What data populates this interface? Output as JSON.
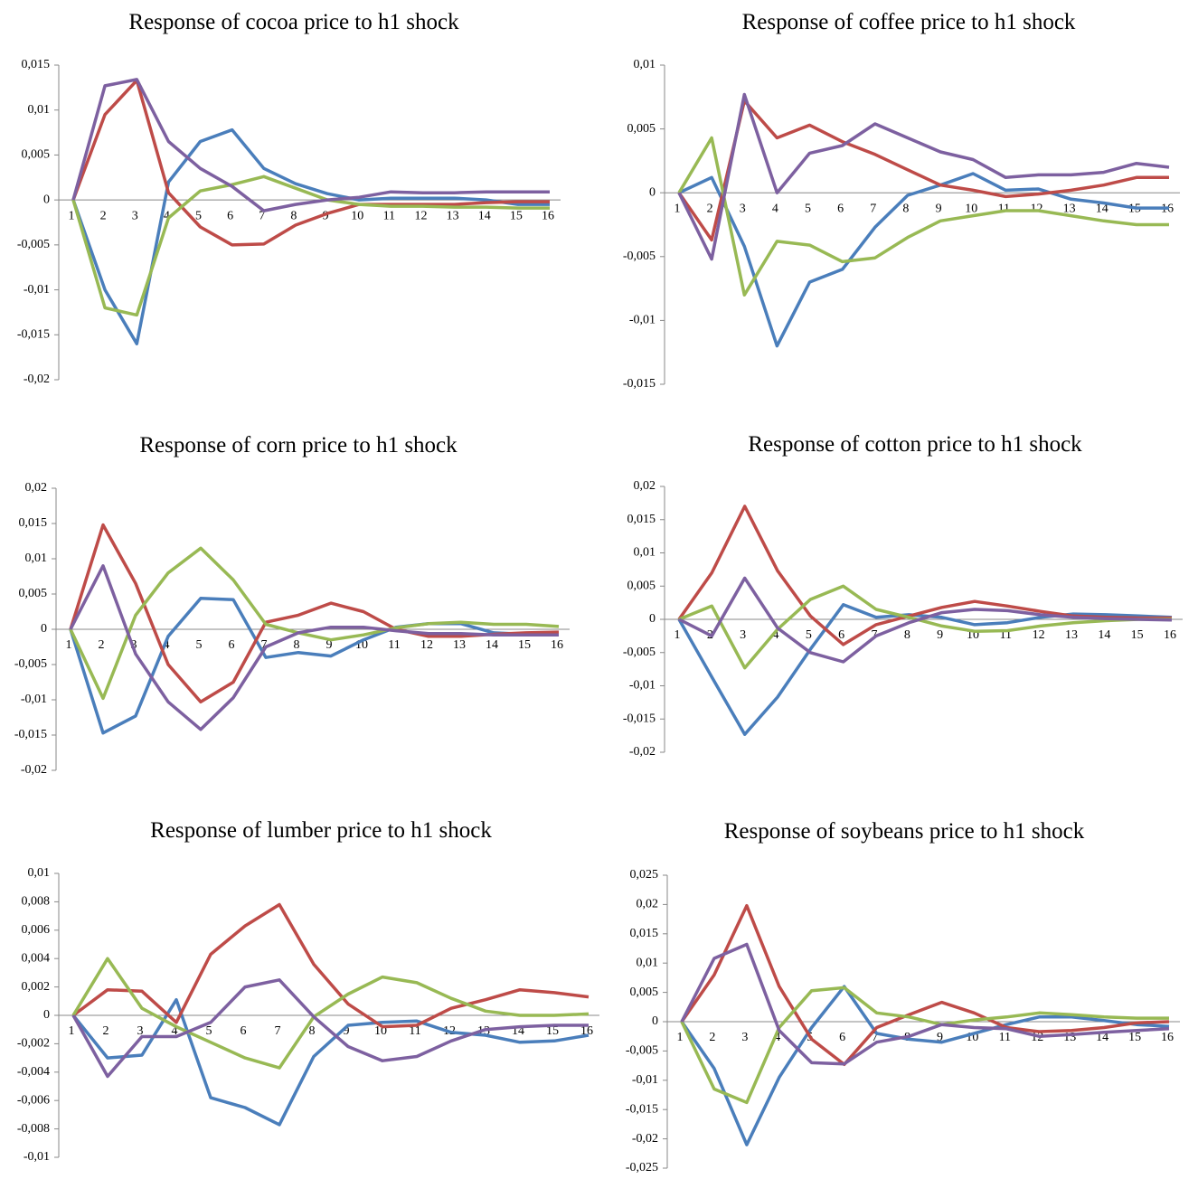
{
  "chart_data": [
    {
      "type": "line",
      "title": "Response of cocoa price to h1 shock",
      "categories": [
        "1",
        "2",
        "3",
        "4",
        "5",
        "6",
        "7",
        "8",
        "9",
        "10",
        "11",
        "12",
        "13",
        "14",
        "15",
        "16"
      ],
      "ylim": [
        -0.02,
        0.015
      ],
      "yticks": [
        {
          "value": 0.015,
          "label": "0,015"
        },
        {
          "value": 0.01,
          "label": "0,01"
        },
        {
          "value": 0.005,
          "label": "0,005"
        },
        0,
        {
          "value": -0.005,
          "label": "-0,005"
        },
        {
          "value": -0.01,
          "label": "-0,01"
        },
        {
          "value": -0.015,
          "label": "-0,015"
        },
        {
          "value": -0.02,
          "label": "-0,02"
        }
      ],
      "series": [
        {
          "color": "#4a7ebb",
          "values": [
            0,
            -0.01,
            -0.016,
            0.002,
            0.0065,
            0.0078,
            0.0035,
            0.0018,
            0.0007,
            0,
            0.0002,
            0.0002,
            0.0002,
            0,
            -0.0005,
            -0.0005
          ]
        },
        {
          "color": "#be4b48",
          "values": [
            0,
            0.0095,
            0.0133,
            0.0008,
            -0.003,
            -0.005,
            -0.0049,
            -0.0028,
            -0.0015,
            -0.0005,
            -0.0005,
            -0.0005,
            -0.0005,
            -0.0003,
            -0.0002,
            -0.0002
          ]
        },
        {
          "color": "#98b954",
          "values": [
            0,
            -0.012,
            -0.0128,
            -0.002,
            0.001,
            0.0017,
            0.0026,
            0.0013,
            0,
            -0.0005,
            -0.0007,
            -0.0007,
            -0.0008,
            -0.0008,
            -0.0009,
            -0.0009
          ]
        },
        {
          "color": "#7d60a0",
          "values": [
            0,
            0.0127,
            0.0134,
            0.0065,
            0.0035,
            0.0015,
            -0.0012,
            -0.0005,
            0,
            0.0003,
            0.0009,
            0.0008,
            0.0008,
            0.0009,
            0.0009,
            0.0009
          ]
        }
      ]
    },
    {
      "type": "line",
      "title": "Response of coffee price to h1 shock",
      "categories": [
        "1",
        "2",
        "3",
        "4",
        "5",
        "6",
        "7",
        "8",
        "9",
        "10",
        "11",
        "12",
        "13",
        "14",
        "15",
        "16"
      ],
      "ylim": [
        -0.015,
        0.01
      ],
      "yticks": [
        {
          "value": 0.01,
          "label": "0,01"
        },
        {
          "value": 0.005,
          "label": "0,005"
        },
        0,
        {
          "value": -0.005,
          "label": "-0,005"
        },
        {
          "value": -0.01,
          "label": "-0,01"
        },
        {
          "value": -0.015,
          "label": "-0,015"
        }
      ],
      "series": [
        {
          "color": "#4a7ebb",
          "values": [
            0,
            0.0012,
            -0.0042,
            -0.012,
            -0.007,
            -0.006,
            -0.0027,
            -0.0002,
            0.0006,
            0.0015,
            0.0002,
            0.0003,
            -0.0005,
            -0.0008,
            -0.0012,
            -0.0012
          ]
        },
        {
          "color": "#be4b48",
          "values": [
            0,
            -0.0037,
            0.0072,
            0.0043,
            0.0053,
            0.004,
            0.003,
            0.0018,
            0.0006,
            0.0002,
            -0.0003,
            -0.0001,
            0.0002,
            0.0006,
            0.0012,
            0.0012
          ]
        },
        {
          "color": "#98b954",
          "values": [
            0,
            0.0043,
            -0.008,
            -0.0038,
            -0.0041,
            -0.0054,
            -0.0051,
            -0.0035,
            -0.0022,
            -0.0018,
            -0.0014,
            -0.0014,
            -0.0018,
            -0.0022,
            -0.0025,
            -0.0025
          ]
        },
        {
          "color": "#7d60a0",
          "values": [
            0,
            -0.0052,
            0.0077,
            0,
            0.0031,
            0.0037,
            0.0054,
            0.0043,
            0.0032,
            0.0026,
            0.0012,
            0.0014,
            0.0014,
            0.0016,
            0.0023,
            0.002
          ]
        }
      ]
    },
    {
      "type": "line",
      "title": "Response of corn price to h1 shock",
      "categories": [
        "1",
        "2",
        "3",
        "4",
        "5",
        "6",
        "7",
        "8",
        "9",
        "10",
        "11",
        "12",
        "13",
        "14",
        "15",
        "16"
      ],
      "ylim": [
        -0.02,
        0.02
      ],
      "yticks": [
        {
          "value": 0.02,
          "label": "0,02"
        },
        {
          "value": 0.015,
          "label": "0,015"
        },
        {
          "value": 0.01,
          "label": "0,01"
        },
        {
          "value": 0.005,
          "label": "0,005"
        },
        0,
        {
          "value": -0.005,
          "label": "-0,005"
        },
        {
          "value": -0.01,
          "label": "-0,01"
        },
        {
          "value": -0.015,
          "label": "-0,015"
        },
        {
          "value": -0.02,
          "label": "-0,02"
        }
      ],
      "series": [
        {
          "color": "#4a7ebb",
          "values": [
            0,
            -0.0147,
            -0.0123,
            -0.001,
            0.0044,
            0.0042,
            -0.004,
            -0.0033,
            -0.0038,
            -0.0015,
            0.0003,
            0.0008,
            0.0008,
            -0.0005,
            -0.0007,
            -0.0007
          ]
        },
        {
          "color": "#be4b48",
          "values": [
            0,
            0.0148,
            0.0065,
            -0.005,
            -0.0103,
            -0.0075,
            0.001,
            0.002,
            0.0037,
            0.0025,
            0,
            -0.001,
            -0.001,
            -0.0007,
            -0.0005,
            -0.0004
          ]
        },
        {
          "color": "#98b954",
          "values": [
            0,
            -0.0098,
            0.002,
            0.008,
            0.0115,
            0.007,
            0.0007,
            -0.0005,
            -0.0015,
            -0.0008,
            0.0002,
            0.0008,
            0.001,
            0.0007,
            0.0007,
            0.0004
          ]
        },
        {
          "color": "#7d60a0",
          "values": [
            0,
            0.009,
            -0.0035,
            -0.0103,
            -0.0142,
            -0.0097,
            -0.0025,
            -0.0005,
            0.0003,
            0.0003,
            -0.0002,
            -0.0006,
            -0.0006,
            -0.0008,
            -0.0008,
            -0.0008
          ]
        }
      ]
    },
    {
      "type": "line",
      "title": "Response of cotton price to h1 shock",
      "categories": [
        "1",
        "2",
        "3",
        "4",
        "5",
        "6",
        "7",
        "8",
        "9",
        "10",
        "11",
        "12",
        "13",
        "14",
        "15",
        "16"
      ],
      "ylim": [
        -0.02,
        0.02
      ],
      "yticks": [
        {
          "value": 0.02,
          "label": "0,02"
        },
        {
          "value": 0.015,
          "label": "0,015"
        },
        {
          "value": 0.01,
          "label": "0,01"
        },
        {
          "value": 0.005,
          "label": "0,005"
        },
        0,
        {
          "value": -0.005,
          "label": "-0,005"
        },
        {
          "value": -0.01,
          "label": "-0,01"
        },
        {
          "value": -0.015,
          "label": "-0,015"
        },
        {
          "value": -0.02,
          "label": "-0,02"
        }
      ],
      "series": [
        {
          "color": "#4a7ebb",
          "values": [
            0,
            -0.0087,
            -0.0173,
            -0.0117,
            -0.0045,
            0.0022,
            0.0003,
            0.0007,
            0.0003,
            -0.0008,
            -0.0005,
            0.0003,
            0.0008,
            0.0007,
            0.0005,
            0.0003
          ]
        },
        {
          "color": "#be4b48",
          "values": [
            0,
            0.007,
            0.017,
            0.0073,
            0.0005,
            -0.0038,
            -0.0008,
            0.0005,
            0.0018,
            0.0027,
            0.002,
            0.0012,
            0.0005,
            0.0003,
            0.0002,
            0.0002
          ]
        },
        {
          "color": "#98b954",
          "values": [
            0,
            0.002,
            -0.0073,
            -0.0015,
            0.003,
            0.005,
            0.0015,
            0.0003,
            -0.001,
            -0.0018,
            -0.0017,
            -0.001,
            -0.0005,
            -0.0002,
            0,
            0
          ]
        },
        {
          "color": "#7d60a0",
          "values": [
            0,
            -0.0025,
            0.0062,
            -0.0013,
            -0.005,
            -0.0064,
            -0.0025,
            -0.0005,
            0.001,
            0.0015,
            0.0013,
            0.0007,
            0.0003,
            0.0001,
            0,
            -0.0001
          ]
        }
      ]
    },
    {
      "type": "line",
      "title": "Response of lumber price to h1 shock",
      "categories": [
        "1",
        "2",
        "3",
        "4",
        "5",
        "6",
        "7",
        "8",
        "9",
        "10",
        "11",
        "12",
        "13",
        "14",
        "15",
        "16"
      ],
      "ylim": [
        -0.01,
        0.01
      ],
      "yticks": [
        {
          "value": 0.01,
          "label": "0,01"
        },
        {
          "value": 0.008,
          "label": "0,008"
        },
        {
          "value": 0.006,
          "label": "0,006"
        },
        {
          "value": 0.004,
          "label": "0,004"
        },
        {
          "value": 0.002,
          "label": "0,002"
        },
        0,
        {
          "value": -0.002,
          "label": "-0,002"
        },
        {
          "value": -0.004,
          "label": "-0,004"
        },
        {
          "value": -0.006,
          "label": "-0,006"
        },
        {
          "value": -0.008,
          "label": "-0,008"
        },
        {
          "value": -0.01,
          "label": "-0,01"
        }
      ],
      "series": [
        {
          "color": "#4a7ebb",
          "values": [
            0,
            -0.003,
            -0.0028,
            0.0011,
            -0.0058,
            -0.0065,
            -0.0077,
            -0.0029,
            -0.0007,
            -0.0005,
            -0.0004,
            -0.0012,
            -0.0014,
            -0.0019,
            -0.0018,
            -0.0014
          ]
        },
        {
          "color": "#be4b48",
          "values": [
            0,
            0.0018,
            0.0017,
            -0.0005,
            0.0043,
            0.0063,
            0.0078,
            0.0036,
            0.0008,
            -0.0008,
            -0.0007,
            0.0005,
            0.0011,
            0.0018,
            0.0016,
            0.0013
          ]
        },
        {
          "color": "#98b954",
          "values": [
            0,
            0.004,
            0.0005,
            -0.0008,
            -0.0019,
            -0.003,
            -0.0037,
            -0.0001,
            0.0015,
            0.0027,
            0.0023,
            0.0012,
            0.0003,
            0,
            0,
            0.0001
          ]
        },
        {
          "color": "#7d60a0",
          "values": [
            0,
            -0.0043,
            -0.0015,
            -0.0015,
            -0.0005,
            0.002,
            0.0025,
            -0.0001,
            -0.0022,
            -0.0032,
            -0.0029,
            -0.0018,
            -0.001,
            -0.0008,
            -0.0007,
            -0.0007
          ]
        }
      ]
    },
    {
      "type": "line",
      "title": "Response of soybeans price to h1 shock",
      "categories": [
        "1",
        "2",
        "3",
        "4",
        "5",
        "6",
        "7",
        "8",
        "9",
        "10",
        "11",
        "12",
        "13",
        "14",
        "15",
        "16"
      ],
      "ylim": [
        -0.025,
        0.025
      ],
      "yticks": [
        {
          "value": 0.025,
          "label": "0,025"
        },
        {
          "value": 0.02,
          "label": "0,02"
        },
        {
          "value": 0.015,
          "label": "0,015"
        },
        {
          "value": 0.01,
          "label": "0,01"
        },
        {
          "value": 0.005,
          "label": "0,005"
        },
        0,
        {
          "value": -0.005,
          "label": "-0,005"
        },
        {
          "value": -0.01,
          "label": "-0,01"
        },
        {
          "value": -0.015,
          "label": "-0,015"
        },
        {
          "value": -0.02,
          "label": "-0,02"
        },
        {
          "value": -0.025,
          "label": "-0,025"
        }
      ],
      "series": [
        {
          "color": "#4a7ebb",
          "values": [
            0,
            -0.008,
            -0.021,
            -0.0095,
            -0.001,
            0.006,
            -0.002,
            -0.003,
            -0.0035,
            -0.002,
            -0.0005,
            0.0008,
            0.0008,
            0.0002,
            -0.0005,
            -0.0008
          ]
        },
        {
          "color": "#be4b48",
          "values": [
            0,
            0.008,
            0.0198,
            0.006,
            -0.003,
            -0.0073,
            -0.001,
            0.0012,
            0.0033,
            0.0015,
            -0.001,
            -0.0017,
            -0.0015,
            -0.001,
            -0.0002,
            0
          ]
        },
        {
          "color": "#98b954",
          "values": [
            0,
            -0.0115,
            -0.0138,
            -0.001,
            0.0053,
            0.0058,
            0.0015,
            0.0008,
            -0.0005,
            0.0003,
            0.0008,
            0.0015,
            0.0012,
            0.0008,
            0.0006,
            0.0006
          ]
        },
        {
          "color": "#7d60a0",
          "values": [
            0,
            0.0108,
            0.0132,
            -0.0015,
            -0.007,
            -0.0072,
            -0.0035,
            -0.0025,
            -0.0005,
            -0.001,
            -0.0012,
            -0.0025,
            -0.0022,
            -0.0018,
            -0.0015,
            -0.0012
          ]
        }
      ]
    }
  ]
}
